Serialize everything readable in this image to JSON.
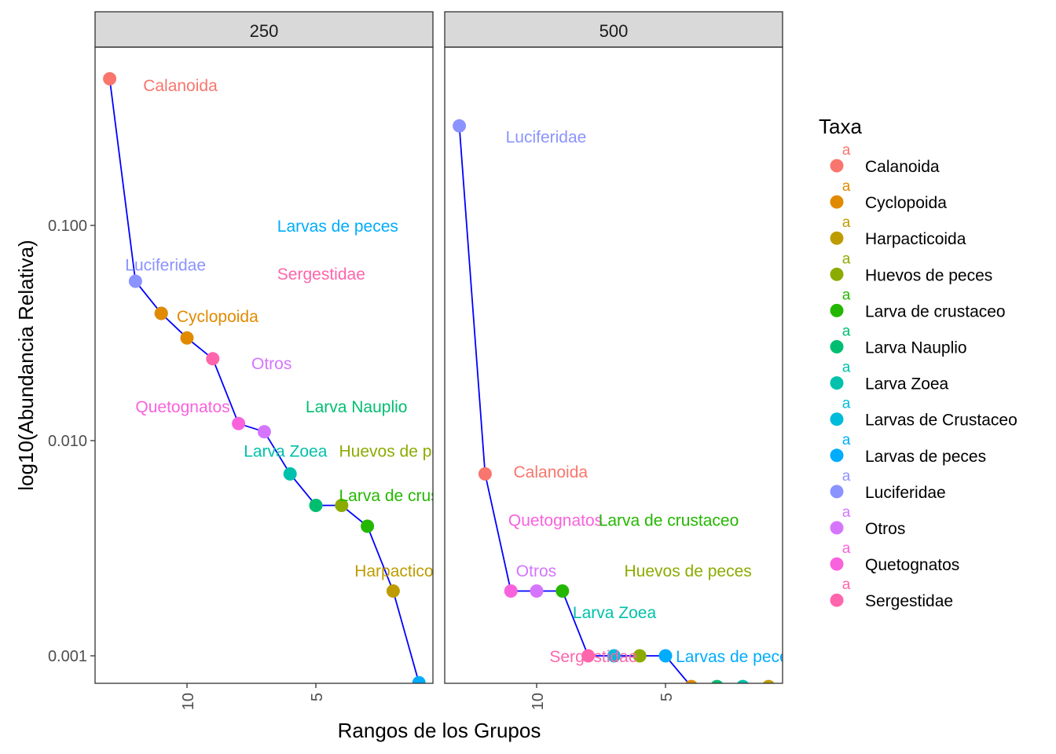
{
  "chart_data": {
    "type": "scatter",
    "xlabel": "Rangos de los Grupos",
    "ylabel": "log10(Abundancia Relativa)",
    "y_scale": "log10",
    "x_reversed": true,
    "y_ticks": [
      "0.100",
      "0.010",
      "0.001"
    ],
    "y_tick_values": [
      0.1,
      0.01,
      0.001
    ],
    "x_ticks": [
      "10",
      "5"
    ],
    "x_tick_values": [
      10,
      5
    ],
    "line_color": "#0000ff",
    "legend": {
      "title": "Taxa",
      "position": "right",
      "key_glyph": "a",
      "entries": [
        {
          "label": "Calanoida",
          "color": "#F8766D"
        },
        {
          "label": "Cyclopoida",
          "color": "#E18A00"
        },
        {
          "label": "Harpacticoida",
          "color": "#BE9C00"
        },
        {
          "label": "Huevos de peces",
          "color": "#8CAB00"
        },
        {
          "label": "Larva de crustaceo",
          "color": "#24B700"
        },
        {
          "label": "Larva Nauplio",
          "color": "#00BE70"
        },
        {
          "label": "Larva Zoea",
          "color": "#00C1AB"
        },
        {
          "label": "Larvas de Crustaceo",
          "color": "#00BBDA"
        },
        {
          "label": "Larvas de peces",
          "color": "#00ACFC"
        },
        {
          "label": "Luciferidae",
          "color": "#8B93FF"
        },
        {
          "label": "Otros",
          "color": "#D575FE"
        },
        {
          "label": "Quetognatos",
          "color": "#F962DD"
        },
        {
          "label": "Sergestidae",
          "color": "#FF65AC"
        }
      ]
    },
    "panels": [
      {
        "strip": "250",
        "points": [
          {
            "x": 13,
            "y": 0.48,
            "color": "#F8766D"
          },
          {
            "x": 12,
            "y": 0.055,
            "color": "#8B93FF"
          },
          {
            "x": 11,
            "y": 0.039,
            "color": "#00BBDA"
          },
          {
            "x": 11,
            "y": 0.039,
            "color": "#E18A00"
          },
          {
            "x": 10,
            "y": 0.03,
            "color": "#E18A00"
          },
          {
            "x": 9,
            "y": 0.024,
            "color": "#FF65AC"
          },
          {
            "x": 8,
            "y": 0.012,
            "color": "#F962DD"
          },
          {
            "x": 7,
            "y": 0.011,
            "color": "#D575FE"
          },
          {
            "x": 6,
            "y": 0.007,
            "color": "#00C1AB"
          },
          {
            "x": 5,
            "y": 0.005,
            "color": "#00BE70"
          },
          {
            "x": 4,
            "y": 0.005,
            "color": "#8CAB00"
          },
          {
            "x": 3,
            "y": 0.004,
            "color": "#24B700"
          },
          {
            "x": 2,
            "y": 0.002,
            "color": "#BE9C00"
          },
          {
            "x": 1,
            "y": 0.00075,
            "color": "#00ACFC"
          }
        ],
        "labels": [
          {
            "text": "Calanoida",
            "x": 11.7,
            "y": 0.45,
            "color": "#F8766D"
          },
          {
            "text": "Larvas de peces",
            "x": 6.5,
            "y": 0.1,
            "color": "#00ACFC"
          },
          {
            "text": "Luciferidae",
            "x": 12.4,
            "y": 0.066,
            "color": "#8B93FF"
          },
          {
            "text": "Sergestidae",
            "x": 6.5,
            "y": 0.06,
            "color": "#FF65AC"
          },
          {
            "text": "Cyclopoida",
            "x": 10.4,
            "y": 0.038,
            "color": "#E18A00"
          },
          {
            "text": "Otros",
            "x": 7.5,
            "y": 0.023,
            "color": "#D575FE"
          },
          {
            "text": "Quetognatos",
            "x": 12,
            "y": 0.0145,
            "color": "#F962DD"
          },
          {
            "text": "Larva Nauplio",
            "x": 5.4,
            "y": 0.0145,
            "color": "#00BE70"
          },
          {
            "text": "Larva Zoea",
            "x": 7.8,
            "y": 0.009,
            "color": "#00C1AB"
          },
          {
            "text": "Huevos de peces",
            "x": 4.1,
            "y": 0.009,
            "color": "#8CAB00"
          },
          {
            "text": "Larva de crustaceo",
            "x": 4.1,
            "y": 0.0056,
            "color": "#24B700"
          },
          {
            "text": "Harpacticoida",
            "x": 3.5,
            "y": 0.0025,
            "color": "#BE9C00"
          }
        ]
      },
      {
        "strip": "500",
        "points": [
          {
            "x": 13,
            "y": 0.29,
            "color": "#8B93FF"
          },
          {
            "x": 12,
            "y": 0.007,
            "color": "#F8766D"
          },
          {
            "x": 11,
            "y": 0.002,
            "color": "#F962DD"
          },
          {
            "x": 10,
            "y": 0.002,
            "color": "#D575FE"
          },
          {
            "x": 9,
            "y": 0.002,
            "color": "#24B700"
          },
          {
            "x": 8,
            "y": 0.001,
            "color": "#FF65AC"
          },
          {
            "x": 7,
            "y": 0.001,
            "color": "#00BBDA"
          },
          {
            "x": 6,
            "y": 0.001,
            "color": "#8CAB00"
          },
          {
            "x": 5,
            "y": 0.001,
            "color": "#00ACFC"
          },
          {
            "x": 4,
            "y": 0.00072,
            "color": "#E18A00"
          },
          {
            "x": 3,
            "y": 0.00072,
            "color": "#00BE70"
          },
          {
            "x": 2,
            "y": 0.00072,
            "color": "#00C1AB"
          },
          {
            "x": 1,
            "y": 0.00072,
            "color": "#BE9C00"
          }
        ],
        "labels": [
          {
            "text": "Luciferidae",
            "x": 11.2,
            "y": 0.26,
            "color": "#8B93FF"
          },
          {
            "text": "Calanoida",
            "x": 10.9,
            "y": 0.0072,
            "color": "#F8766D"
          },
          {
            "text": "Quetognatos",
            "x": 11.1,
            "y": 0.0043,
            "color": "#F962DD"
          },
          {
            "text": "Larva de crustaceo",
            "x": 7.6,
            "y": 0.0043,
            "color": "#24B700"
          },
          {
            "text": "Otros",
            "x": 10.8,
            "y": 0.0025,
            "color": "#D575FE"
          },
          {
            "text": "Huevos de peces",
            "x": 6.6,
            "y": 0.0025,
            "color": "#8CAB00"
          },
          {
            "text": "Larva Zoea",
            "x": 8.6,
            "y": 0.0016,
            "color": "#00C1AB"
          },
          {
            "text": "Sergestidae",
            "x": 9.5,
            "y": 0.001,
            "color": "#FF65AC"
          },
          {
            "text": "Larvas de peces",
            "x": 4.6,
            "y": 0.001,
            "color": "#00ACFC"
          }
        ]
      }
    ]
  }
}
